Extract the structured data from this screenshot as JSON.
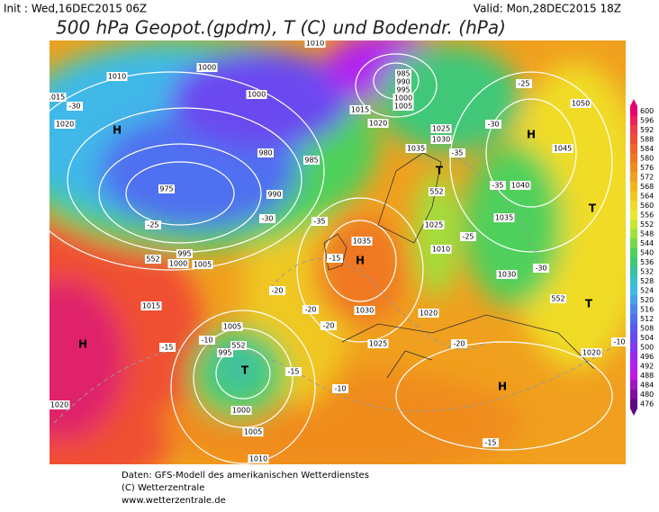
{
  "header": {
    "init": "Init : Wed,16DEC2015 06Z",
    "valid": "Valid: Mon,28DEC2015 18Z",
    "title": "500 hPa Geopot.(gpdm), T (C) und Bodendr. (hPa)"
  },
  "legend": {
    "ticks": [
      600,
      596,
      592,
      588,
      584,
      580,
      576,
      572,
      568,
      564,
      560,
      556,
      552,
      548,
      544,
      540,
      536,
      532,
      528,
      524,
      520,
      516,
      512,
      508,
      504,
      500,
      496,
      492,
      488,
      484,
      480,
      476
    ],
    "colors": [
      "#e8006e",
      "#f0205a",
      "#f03c46",
      "#f05032",
      "#f06428",
      "#f07820",
      "#f08c1e",
      "#f0a01e",
      "#f0b41e",
      "#f0c820",
      "#f0dc28",
      "#e8e830",
      "#c8e830",
      "#a0e03c",
      "#78d84c",
      "#50d05c",
      "#40c878",
      "#38c0a0",
      "#38c0c8",
      "#40b8e8",
      "#4aa0f0",
      "#4a88f0",
      "#5070f0",
      "#5a58f0",
      "#6a48f0",
      "#8038f0",
      "#9a28f0",
      "#b020f0",
      "#c018e0",
      "#a018c0",
      "#8010a0",
      "#600880"
    ]
  },
  "map": {
    "labels": [
      "H",
      "H",
      "H",
      "H",
      "H",
      "T",
      "T",
      "T",
      "T",
      "1015",
      "1020",
      "1010",
      "1000",
      "1000",
      "1010",
      "1015",
      "1020",
      "1025",
      "1030",
      "1035",
      "1045",
      "1050",
      "1040",
      "1035",
      "1030",
      "1035",
      "1030",
      "1025",
      "1020",
      "1025",
      "1010",
      "1005",
      "1000",
      "995",
      "1015",
      "1005",
      "995",
      "1000",
      "1005",
      "1010",
      "1020",
      "1020",
      "985",
      "990",
      "980",
      "975",
      "985",
      "990",
      "995",
      "1000",
      "1005",
      "-25",
      "-30",
      "-35",
      "-30",
      "-30",
      "-35",
      "-25",
      "-20",
      "-20",
      "-20",
      "-20",
      "-15",
      "-15",
      "-10",
      "-15",
      "-10",
      "-15",
      "-10",
      "-25",
      "-30",
      "-35",
      "552",
      "552",
      "552",
      "552"
    ]
  },
  "footer": {
    "lines": [
      "Daten: GFS-Modell des amerikanischen Wetterdienstes",
      "(C) Wetterzentrale",
      "www.wetterzentrale.de"
    ]
  }
}
